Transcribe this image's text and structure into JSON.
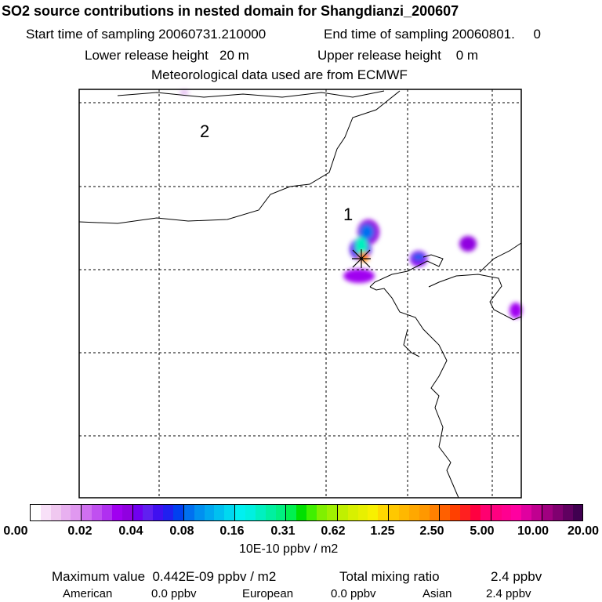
{
  "header": {
    "title": "SO2 source contributions in nested domain for Shangdianzi_200607",
    "start_label": "Start time of sampling 20060731.210000",
    "end_label": "End time of sampling 20060801.     0",
    "lower_label": "Lower release height   20 m",
    "upper_label": "Upper release height    0 m",
    "met_label": "Meteorological data used are from ECMWF"
  },
  "map": {
    "region_labels": [
      "1",
      "2"
    ],
    "station_marker": "star-icon"
  },
  "colorbar": {
    "ticks": [
      "0.00",
      "0.02",
      "0.04",
      "0.08",
      "0.16",
      "0.31",
      "0.62",
      "1.25",
      "2.50",
      "5.00",
      "10.00",
      "20.00"
    ],
    "unit": "10E-10 ppbv / m2",
    "colors": [
      "#ffffff",
      "#f8e0f8",
      "#f0c8f0",
      "#e8b0f0",
      "#e098f0",
      "#d070f0",
      "#c050f0",
      "#b030f0",
      "#a000f0",
      "#9000e0",
      "#7000f0",
      "#6020f0",
      "#4010f0",
      "#2020f0",
      "#0040f0",
      "#0070f0",
      "#0090f0",
      "#00a8f0",
      "#00c0f0",
      "#00d8f0",
      "#00f0f0",
      "#00f0e0",
      "#00f0c0",
      "#00f0a0",
      "#00f080",
      "#00f050",
      "#00e000",
      "#40f000",
      "#80f000",
      "#a0f000",
      "#c0f000",
      "#d8f000",
      "#e8f000",
      "#f8f000",
      "#ffd800",
      "#ffc800",
      "#ffb800",
      "#ffa800",
      "#ff9800",
      "#ff8000",
      "#ff6000",
      "#ff4000",
      "#ff2020",
      "#ff0040",
      "#ff0070",
      "#ff0080",
      "#ff0090",
      "#ff00a0",
      "#e000a0",
      "#c00090",
      "#a00080",
      "#800070",
      "#600060",
      "#400050"
    ]
  },
  "summary": {
    "max_label": "Maximum value  0.442E-09 ppbv / m2",
    "total_label": "Total mixing ratio",
    "total_value": "2.4 ppbv",
    "american_label": "American",
    "american_value": "0.0 ppbv",
    "european_label": "European",
    "european_value": "0.0 ppbv",
    "asian_label": "Asian",
    "asian_value": "2.4 ppbv"
  }
}
